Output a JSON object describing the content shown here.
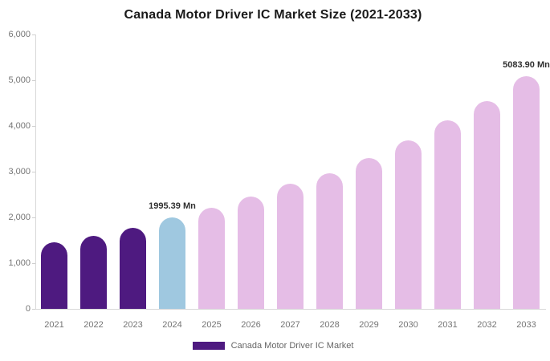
{
  "chart_data": {
    "type": "bar",
    "title": "Canada Motor Driver IC Market Size (2021-2033)",
    "unit": "Mn",
    "categories": [
      "2021",
      "2022",
      "2023",
      "2024",
      "2025",
      "2026",
      "2027",
      "2028",
      "2029",
      "2030",
      "2031",
      "2032",
      "2033"
    ],
    "values": [
      1450,
      1600,
      1780,
      1995.39,
      2210,
      2450,
      2730,
      2970,
      3290,
      3690,
      4120,
      4540,
      5083.9
    ],
    "bar_colors": [
      "#4e1a80",
      "#4e1a80",
      "#4e1a80",
      "#9fc8e0",
      "#e5bde6",
      "#e5bde6",
      "#e5bde6",
      "#e5bde6",
      "#e5bde6",
      "#e5bde6",
      "#e5bde6",
      "#e5bde6",
      "#e5bde6"
    ],
    "ylim": [
      0,
      6000
    ],
    "ytick_labels": [
      "0",
      "1,000",
      "2,000",
      "3,000",
      "4,000",
      "5,000",
      "6,000"
    ],
    "grid": false,
    "legend_position": "bottom",
    "annotations": [
      {
        "category_index": 3,
        "text": "1995.39 Mn"
      },
      {
        "category_index": 12,
        "text": "5083.90 Mn"
      }
    ],
    "legend": {
      "swatch_color": "#4e1a80",
      "label": "Canada Motor Driver IC Market"
    }
  },
  "colors": {
    "historical_bar": "#4e1a80",
    "highlight_bar": "#9fc8e0",
    "forecast_bar": "#e5bde6",
    "axis_text": "#757575",
    "axis_line": "#d8d8d8",
    "annotation_text": "#2f2f2f",
    "legend_text": "#666666",
    "title_text": "#1a1a1a"
  }
}
